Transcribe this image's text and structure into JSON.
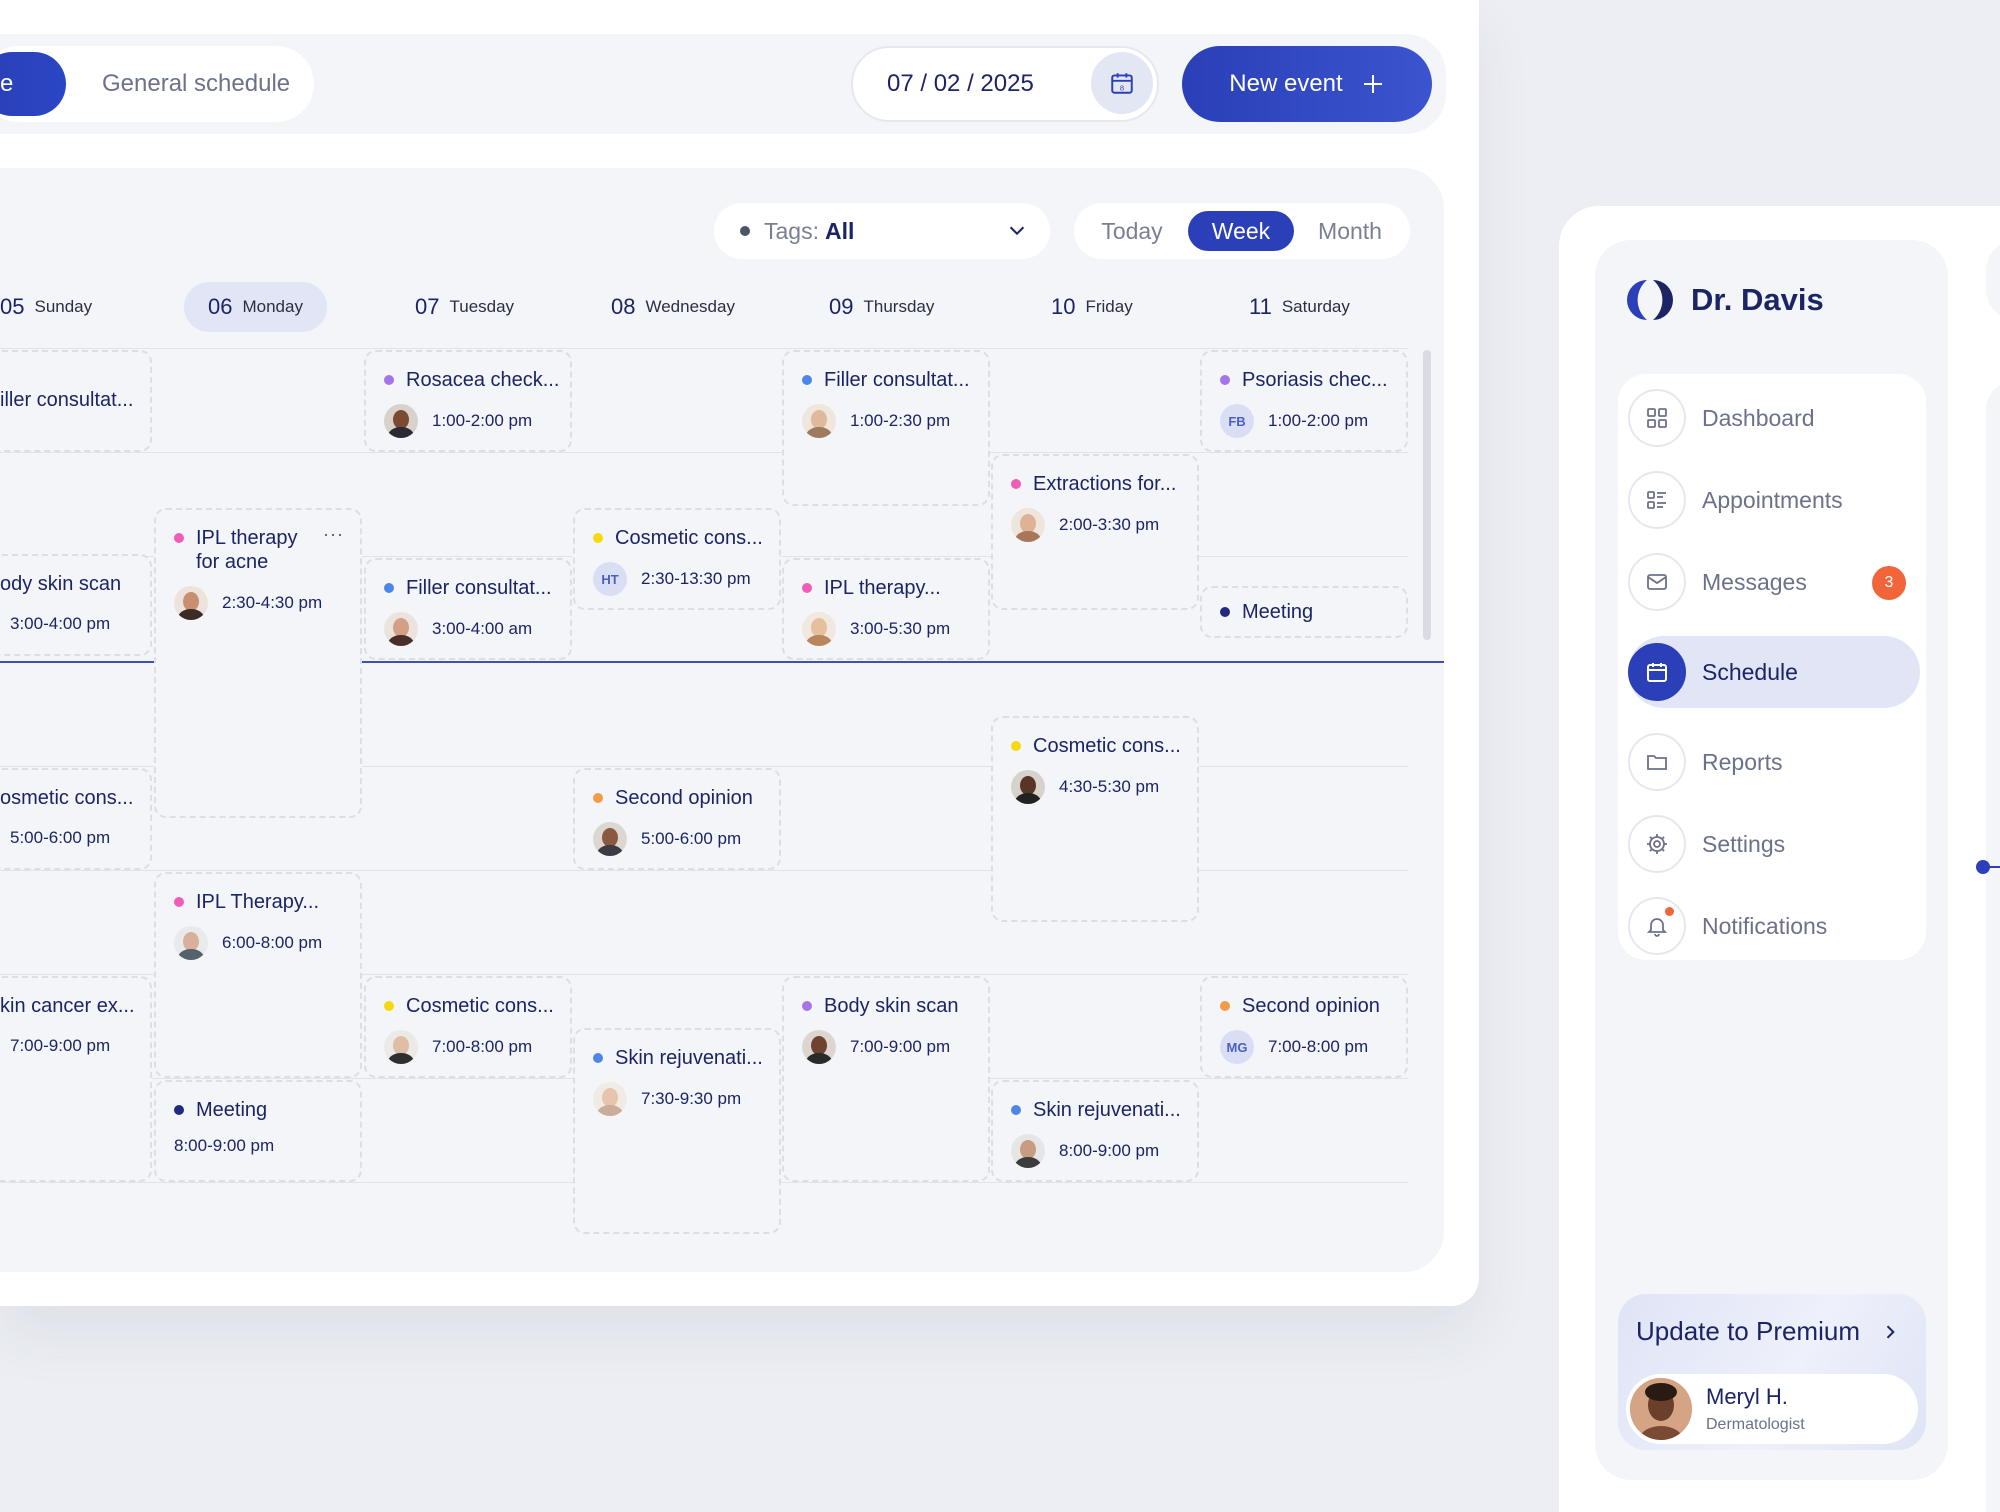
{
  "toolbar": {
    "active_tab_label": "e",
    "general_tab_label": "General schedule",
    "date_value": "07 / 02 / 2025",
    "new_event_label": "New event"
  },
  "filters": {
    "tags_label": "Tags:",
    "tags_value": "All",
    "views": [
      {
        "label": "Today",
        "active": false
      },
      {
        "label": "Week",
        "active": true
      },
      {
        "label": "Month",
        "active": false
      }
    ]
  },
  "days": [
    {
      "num": "05",
      "name": "Sunday",
      "active": false
    },
    {
      "num": "06",
      "name": "Monday",
      "active": true
    },
    {
      "num": "07",
      "name": "Tuesday",
      "active": false
    },
    {
      "num": "08",
      "name": "Wednesday",
      "active": false
    },
    {
      "num": "09",
      "name": "Thursday",
      "active": false
    },
    {
      "num": "10",
      "name": "Friday",
      "active": false
    },
    {
      "num": "11",
      "name": "Saturday",
      "active": false
    }
  ],
  "events": [
    {
      "title": "iller consultat...",
      "time": "",
      "color": "",
      "avatar": "none"
    },
    {
      "title": "ody skin scan",
      "time": "3:00-4:00 pm",
      "color": "",
      "avatar": "none"
    },
    {
      "title": "osmetic cons...",
      "time": "5:00-6:00 pm",
      "color": "",
      "avatar": "none"
    },
    {
      "title": "kin cancer ex...",
      "time": "7:00-9:00 pm",
      "color": "",
      "avatar": "none"
    },
    {
      "title": "IPL therapy for acne",
      "time": "2:30-4:30 pm",
      "color": "#ef5db8",
      "avatar": "photo"
    },
    {
      "title": "IPL Therapy...",
      "time": "6:00-8:00 pm",
      "color": "#ef5db8",
      "avatar": "photo"
    },
    {
      "title": "Meeting",
      "time": "8:00-9:00 pm",
      "color": "#1f2a80",
      "avatar": "none"
    },
    {
      "title": "Rosacea check...",
      "time": "1:00-2:00 pm",
      "color": "#a773e8",
      "avatar": "photo"
    },
    {
      "title": "Filler consultat...",
      "time": "3:00-4:00 am",
      "color": "#4d86e8",
      "avatar": "photo"
    },
    {
      "title": "Cosmetic cons...",
      "time": "7:00-8:00 pm",
      "color": "#f5d90f",
      "avatar": "photo"
    },
    {
      "title": "Cosmetic cons...",
      "time": "2:30-13:30 pm",
      "color": "#f5d90f",
      "avatar": "initials",
      "initials": "HT"
    },
    {
      "title": "Second opinion",
      "time": "5:00-6:00 pm",
      "color": "#f59a45",
      "avatar": "photo"
    },
    {
      "title": "Skin rejuvenati...",
      "time": "7:30-9:30 pm",
      "color": "#4d86e8",
      "avatar": "photo"
    },
    {
      "title": "Filler consultat...",
      "time": "1:00-2:30 pm",
      "color": "#4d86e8",
      "avatar": "photo"
    },
    {
      "title": "IPL therapy...",
      "time": "3:00-5:30 pm",
      "color": "#ef5db8",
      "avatar": "photo"
    },
    {
      "title": "Body skin scan",
      "time": "7:00-9:00 pm",
      "color": "#a773e8",
      "avatar": "photo"
    },
    {
      "title": "Extractions for...",
      "time": "2:00-3:30 pm",
      "color": "#ef5db8",
      "avatar": "photo"
    },
    {
      "title": "Cosmetic cons...",
      "time": "4:30-5:30 pm",
      "color": "#f5d90f",
      "avatar": "photo"
    },
    {
      "title": "Skin rejuvenati...",
      "time": "8:00-9:00 pm",
      "color": "#4d86e8",
      "avatar": "photo"
    },
    {
      "title": "Psoriasis chec...",
      "time": "1:00-2:00 pm",
      "color": "#a773e8",
      "avatar": "initials",
      "initials": "FB"
    },
    {
      "title": "Meeting",
      "time": "",
      "color": "#1f2a80",
      "avatar": "none"
    },
    {
      "title": "Second opinion",
      "time": "7:00-8:00 pm",
      "color": "#f59a45",
      "avatar": "initials",
      "initials": "MG"
    }
  ],
  "sidebar": {
    "brand": "Dr. Davis",
    "items": [
      {
        "label": "Dashboard",
        "icon": "grid-icon",
        "active": false
      },
      {
        "label": "Appointments",
        "icon": "list-icon",
        "active": false
      },
      {
        "label": "Messages",
        "icon": "mail-icon",
        "active": false,
        "badge": "3"
      },
      {
        "label": "Schedule",
        "icon": "calendar-icon",
        "active": true
      },
      {
        "label": "Reports",
        "icon": "folder-icon",
        "active": false
      },
      {
        "label": "Settings",
        "icon": "gear-icon",
        "active": false
      },
      {
        "label": "Notifications",
        "icon": "bell-icon",
        "active": false
      }
    ],
    "premium_label": "Update to Premium",
    "user_name": "Meryl H.",
    "user_role": "Dermatologist"
  },
  "colors": {
    "accent": "#2a3fb8",
    "text": "#1b2566",
    "badge": "#f2653b"
  }
}
